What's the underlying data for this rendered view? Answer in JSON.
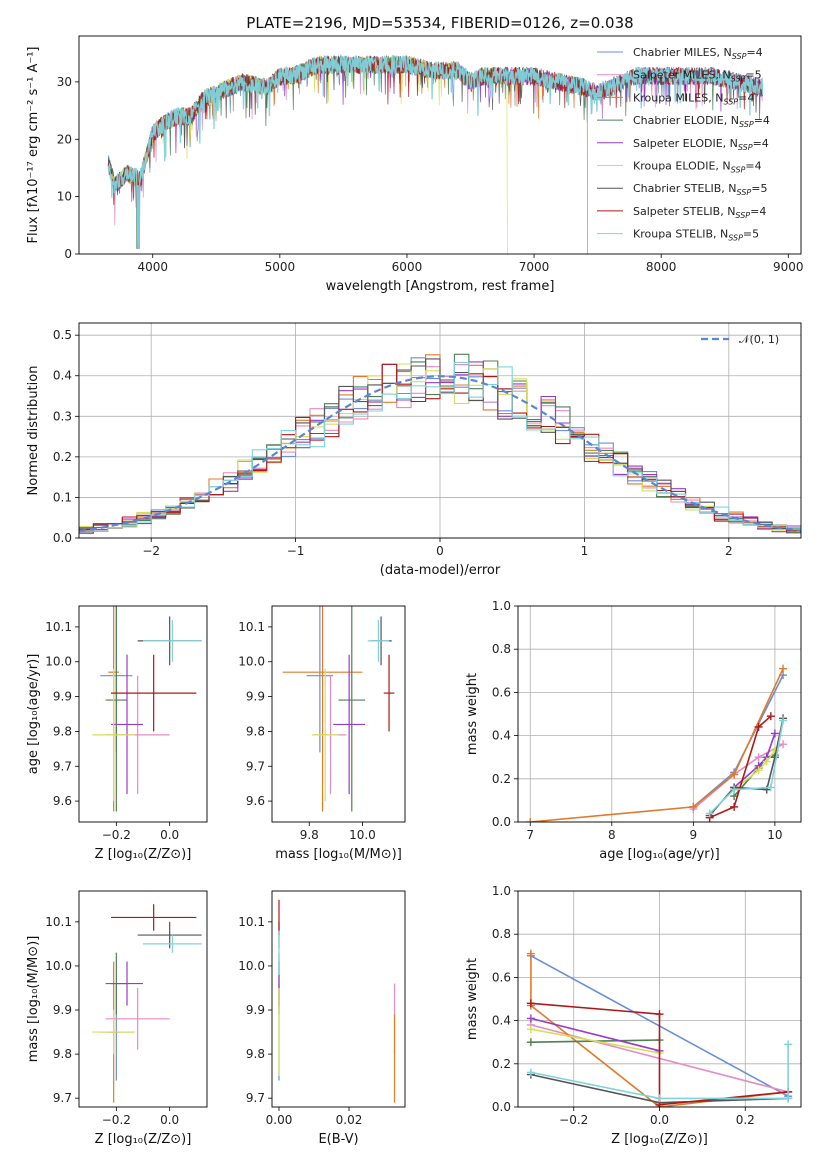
{
  "colors": {
    "Chabrier MILES": "#6a8fd8",
    "Salpeter MILES": "#e58cc4",
    "Kroupa MILES": "#e07b2a",
    "Chabrier ELODIE": "#4f7f55",
    "Salpeter ELODIE": "#9a3bc8",
    "Kroupa ELODIE": "#d5e05a",
    "Chabrier STELIB": "#555555",
    "Salpeter STELIB": "#b01818",
    "Kroupa STELIB": "#7fd4dc"
  },
  "chart_data": [
    {
      "id": "spectrum",
      "type": "line",
      "title": "PLATE=2196, MJD=53534, FIBERID=0126, z=0.038",
      "xlabel": "wavelength [Angstrom, rest frame]",
      "ylabel": "Flux [fλ10⁻¹⁷ erg cm⁻² s⁻¹ A⁻¹]",
      "xlim": [
        3420,
        9100
      ],
      "ylim": [
        0,
        38
      ],
      "xticks": [
        4000,
        5000,
        6000,
        7000,
        8000,
        9000
      ],
      "yticks": [
        0,
        10,
        20,
        30
      ],
      "legend_position": "top-right",
      "series": [
        {
          "name": "Chabrier MILES, N_SSP=4",
          "legend": "Chabrier MILES, N",
          "sub": "SSP",
          "suffix": "=4",
          "color": "Chabrier MILES"
        },
        {
          "name": "Salpeter MILES, N_SSP=5",
          "legend": "Salpeter MILES, N",
          "sub": "SSP",
          "suffix": "=5",
          "color": "Salpeter MILES"
        },
        {
          "name": "Kroupa MILES, N_SSP=4",
          "legend": "Kroupa MILES, N",
          "sub": "SSP",
          "suffix": "=4",
          "color": "Kroupa MILES"
        },
        {
          "name": "Chabrier ELODIE, N_SSP=4",
          "legend": "Chabrier ELODIE, N",
          "sub": "SSP",
          "suffix": "=4",
          "color": "Chabrier ELODIE"
        },
        {
          "name": "Salpeter ELODIE, N_SSP=4",
          "legend": "Salpeter ELODIE, N",
          "sub": "SSP",
          "suffix": "=4",
          "color": "Salpeter ELODIE"
        },
        {
          "name": "Kroupa ELODIE, N_SSP=4",
          "legend": "Kroupa ELODIE, N",
          "sub": "SSP",
          "suffix": "=4",
          "color": "Kroupa ELODIE"
        },
        {
          "name": "Chabrier STELIB, N_SSP=5",
          "legend": "Chabrier STELIB, N",
          "sub": "SSP",
          "suffix": "=5",
          "color": "Chabrier STELIB"
        },
        {
          "name": "Salpeter STELIB, N_SSP=4",
          "legend": "Salpeter STELIB, N",
          "sub": "SSP",
          "suffix": "=4",
          "color": "Salpeter STELIB"
        },
        {
          "name": "Kroupa STELIB, N_SSP=5",
          "legend": "Kroupa STELIB, N",
          "sub": "SSP",
          "suffix": "=5",
          "color": "Kroupa STELIB"
        }
      ],
      "envelope": {
        "x": [
          3650,
          3700,
          3800,
          3900,
          4000,
          4100,
          4200,
          4300,
          4400,
          4500,
          4700,
          4900,
          5000,
          5100,
          5200,
          5300,
          5400,
          5500,
          5600,
          5800,
          6000,
          6200,
          6400,
          6500,
          6600,
          6800,
          7000,
          7200,
          7400,
          7500,
          7600,
          7700,
          7800,
          7900,
          8000,
          8200,
          8400,
          8600,
          8800
        ],
        "y": [
          16,
          12,
          14,
          13,
          21,
          23,
          24,
          24,
          27,
          28,
          30,
          29,
          31,
          31,
          32,
          33,
          33,
          33,
          33,
          33,
          33,
          32,
          32,
          30,
          31,
          31,
          31,
          30,
          29,
          28,
          29,
          30,
          31,
          31,
          31,
          31,
          31,
          30,
          29
        ]
      },
      "cutoffs": [
        {
          "series": "Kroupa ELODIE",
          "x": 6790
        },
        {
          "series": "Kroupa MILES",
          "x": 7420
        }
      ]
    },
    {
      "id": "residuals",
      "type": "line",
      "xlabel": "(data-model)/error",
      "ylabel": "Normed distribution",
      "xlim": [
        -2.5,
        2.5
      ],
      "ylim": [
        0,
        0.53
      ],
      "xticks": [
        -2,
        -1,
        0,
        1,
        2
      ],
      "yticks": [
        0.0,
        0.1,
        0.2,
        0.3,
        0.4,
        0.5
      ],
      "grid": true,
      "legend_position": "top-right",
      "legend": "𝒩(0, 1)",
      "bin_width": 0.1
    },
    {
      "id": "age-Z",
      "type": "scatter",
      "xlabel": "Z [log₁₀(Z/Z⊙)]",
      "ylabel": "age  [log₁₀(age/yr)]",
      "xlim": [
        -0.34,
        0.14
      ],
      "ylim": [
        9.54,
        10.16
      ],
      "xticks": [
        -0.2,
        0.0
      ],
      "yticks": [
        9.6,
        9.7,
        9.8,
        9.9,
        10.0,
        10.1
      ],
      "points": [
        {
          "color": "Chabrier MILES",
          "x": -0.2,
          "y": 9.96,
          "xerr": 0.06,
          "yerr": 0.22
        },
        {
          "color": "Salpeter MILES",
          "x": -0.12,
          "y": 9.79,
          "xerr": 0.12,
          "yerr": 0.17
        },
        {
          "color": "Kroupa MILES",
          "x": -0.21,
          "y": 9.97,
          "xerr": 0.02,
          "yerr": 0.4
        },
        {
          "color": "Chabrier ELODIE",
          "x": -0.2,
          "y": 9.89,
          "xerr": 0.04,
          "yerr": 0.32
        },
        {
          "color": "Salpeter ELODIE",
          "x": -0.16,
          "y": 9.82,
          "xerr": 0.06,
          "yerr": 0.2
        },
        {
          "color": "Kroupa ELODIE",
          "x": -0.21,
          "y": 9.79,
          "xerr": 0.08,
          "yerr": 0.19
        },
        {
          "color": "Chabrier STELIB",
          "x": 0.0,
          "y": 10.06,
          "xerr": 0.12,
          "yerr": 0.07
        },
        {
          "color": "Salpeter STELIB",
          "x": -0.06,
          "y": 9.91,
          "xerr": 0.16,
          "yerr": 0.11
        },
        {
          "color": "Kroupa STELIB",
          "x": 0.01,
          "y": 10.06,
          "xerr": 0.11,
          "yerr": 0.06
        }
      ]
    },
    {
      "id": "age-mass",
      "type": "scatter",
      "xlabel": "mass [log₁₀(M/M⊙)]",
      "ylabel": "",
      "xlim": [
        9.66,
        10.16
      ],
      "ylim": [
        9.54,
        10.16
      ],
      "xticks": [
        9.8,
        10.0
      ],
      "yticks": [
        9.6,
        9.7,
        9.8,
        9.9,
        10.0,
        10.1
      ],
      "points": [
        {
          "color": "Chabrier MILES",
          "x": 9.84,
          "y": 9.96,
          "xerr": 0.05,
          "yerr": 0.22
        },
        {
          "color": "Salpeter MILES",
          "x": 9.88,
          "y": 9.79,
          "xerr": 0.06,
          "yerr": 0.17
        },
        {
          "color": "Kroupa MILES",
          "x": 9.85,
          "y": 9.97,
          "xerr": 0.15,
          "yerr": 0.4
        },
        {
          "color": "Chabrier ELODIE",
          "x": 9.96,
          "y": 9.89,
          "xerr": 0.05,
          "yerr": 0.32
        },
        {
          "color": "Salpeter ELODIE",
          "x": 9.95,
          "y": 9.82,
          "xerr": 0.06,
          "yerr": 0.2
        },
        {
          "color": "Kroupa ELODIE",
          "x": 9.86,
          "y": 9.79,
          "xerr": 0.05,
          "yerr": 0.19
        },
        {
          "color": "Chabrier STELIB",
          "x": 10.07,
          "y": 10.06,
          "xerr": 0.04,
          "yerr": 0.07
        },
        {
          "color": "Salpeter STELIB",
          "x": 10.1,
          "y": 9.91,
          "xerr": 0.02,
          "yerr": 0.11
        },
        {
          "color": "Kroupa STELIB",
          "x": 10.06,
          "y": 10.06,
          "xerr": 0.04,
          "yerr": 0.06
        }
      ]
    },
    {
      "id": "weights-age",
      "type": "line",
      "xlabel": "age  [log₁₀(age/yr)]",
      "ylabel": "mass weight",
      "xlim": [
        6.85,
        10.32
      ],
      "ylim": [
        0,
        1.0
      ],
      "xticks": [
        7,
        8,
        9,
        10
      ],
      "yticks": [
        0.0,
        0.2,
        0.4,
        0.6,
        0.8,
        1.0
      ],
      "grid": true,
      "series": [
        {
          "color": "Chabrier MILES",
          "x": [
            9.0,
            9.5,
            10.1
          ],
          "y": [
            0.07,
            0.23,
            0.68
          ]
        },
        {
          "color": "Salpeter MILES",
          "x": [
            9.0,
            9.5,
            9.8,
            10.1
          ],
          "y": [
            0.06,
            0.22,
            0.3,
            0.36
          ]
        },
        {
          "color": "Kroupa MILES",
          "x": [
            7.0,
            9.0,
            9.5,
            10.1
          ],
          "y": [
            0.0,
            0.07,
            0.22,
            0.71
          ]
        },
        {
          "color": "Chabrier ELODIE",
          "x": [
            9.5,
            9.8,
            9.9,
            10.0
          ],
          "y": [
            0.12,
            0.25,
            0.3,
            0.31
          ]
        },
        {
          "color": "Salpeter ELODIE",
          "x": [
            9.5,
            9.8,
            9.9,
            10.0
          ],
          "y": [
            0.16,
            0.26,
            0.3,
            0.41
          ]
        },
        {
          "color": "Kroupa ELODIE",
          "x": [
            9.5,
            9.8,
            9.9,
            10.0
          ],
          "y": [
            0.15,
            0.24,
            0.28,
            0.33
          ]
        },
        {
          "color": "Chabrier STELIB",
          "x": [
            9.2,
            9.5,
            9.9,
            10.0,
            10.1
          ],
          "y": [
            0.03,
            0.16,
            0.15,
            0.3,
            0.48
          ]
        },
        {
          "color": "Salpeter STELIB",
          "x": [
            9.2,
            9.5,
            9.8,
            9.95
          ],
          "y": [
            0.02,
            0.07,
            0.44,
            0.49
          ]
        },
        {
          "color": "Kroupa STELIB",
          "x": [
            9.2,
            9.5,
            9.95,
            10.1
          ],
          "y": [
            0.04,
            0.15,
            0.16,
            0.47
          ]
        }
      ]
    },
    {
      "id": "mass-Z",
      "type": "scatter",
      "xlabel": "Z [log₁₀(Z/Z⊙)]",
      "ylabel": "mass [log₁₀(M/M⊙)]",
      "xlim": [
        -0.34,
        0.14
      ],
      "ylim": [
        9.68,
        10.17
      ],
      "xticks": [
        -0.2,
        0.0
      ],
      "yticks": [
        9.7,
        9.8,
        9.9,
        10.0,
        10.1
      ],
      "points": [
        {
          "color": "Chabrier MILES",
          "x": -0.2,
          "y": 9.85,
          "xerr": 0.06,
          "yerr": 0.11
        },
        {
          "color": "Salpeter MILES",
          "x": -0.12,
          "y": 9.88,
          "xerr": 0.12,
          "yerr": 0.07
        },
        {
          "color": "Kroupa MILES",
          "x": -0.21,
          "y": 9.85,
          "xerr": 0.02,
          "yerr": 0.16
        },
        {
          "color": "Chabrier ELODIE",
          "x": -0.2,
          "y": 9.96,
          "xerr": 0.04,
          "yerr": 0.07
        },
        {
          "color": "Salpeter ELODIE",
          "x": -0.16,
          "y": 9.96,
          "xerr": 0.06,
          "yerr": 0.05
        },
        {
          "color": "Kroupa ELODIE",
          "x": -0.21,
          "y": 9.85,
          "xerr": 0.08,
          "yerr": 0.05
        },
        {
          "color": "Chabrier STELIB",
          "x": 0.0,
          "y": 10.07,
          "xerr": 0.12,
          "yerr": 0.03
        },
        {
          "color": "Salpeter STELIB",
          "x": -0.06,
          "y": 10.11,
          "xerr": 0.16,
          "yerr": 0.03
        },
        {
          "color": "Kroupa STELIB",
          "x": 0.01,
          "y": 10.05,
          "xerr": 0.11,
          "yerr": 0.02
        }
      ]
    },
    {
      "id": "mass-ebv",
      "type": "scatter",
      "xlabel": "E(B-V)",
      "ylabel": "",
      "xlim": [
        -0.002,
        0.036
      ],
      "ylim": [
        9.68,
        10.17
      ],
      "xticks": [
        0.0,
        0.02
      ],
      "yticks": [
        9.7,
        9.8,
        9.9,
        10.0,
        10.1
      ],
      "points": [
        {
          "color": "Chabrier MILES",
          "x": 0.0,
          "y": 9.85,
          "xerr": 0,
          "yerr": 0.11
        },
        {
          "color": "Salpeter MILES",
          "x": 0.033,
          "y": 9.88,
          "xerr": 0,
          "yerr": 0.08
        },
        {
          "color": "Kroupa MILES",
          "x": 0.033,
          "y": 9.79,
          "xerr": 0,
          "yerr": 0.1
        },
        {
          "color": "Chabrier ELODIE",
          "x": 0.0,
          "y": 9.96,
          "xerr": 0,
          "yerr": 0.07
        },
        {
          "color": "Salpeter ELODIE",
          "x": 0.0,
          "y": 9.96,
          "xerr": 0,
          "yerr": 0.05
        },
        {
          "color": "Kroupa ELODIE",
          "x": 0.0,
          "y": 9.85,
          "xerr": 0,
          "yerr": 0.1
        },
        {
          "color": "Chabrier STELIB",
          "x": 0.0,
          "y": 10.07,
          "xerr": 0,
          "yerr": 0.03
        },
        {
          "color": "Salpeter STELIB",
          "x": 0.0,
          "y": 10.11,
          "xerr": 0,
          "yerr": 0.04
        },
        {
          "color": "Kroupa STELIB",
          "x": 0.0,
          "y": 10.03,
          "xerr": 0,
          "yerr": 0.05
        }
      ]
    },
    {
      "id": "weights-Z",
      "type": "line",
      "xlabel": "Z [log₁₀(Z/Z⊙)]",
      "ylabel": "mass weight",
      "xlim": [
        -0.33,
        0.33
      ],
      "ylim": [
        0,
        1.0
      ],
      "xticks": [
        -0.2,
        0.0,
        0.2
      ],
      "yticks": [
        0.0,
        0.2,
        0.4,
        0.6,
        0.8,
        1.0
      ],
      "grid": true,
      "series": [
        {
          "color": "Chabrier MILES",
          "x": [
            -0.3,
            0.3
          ],
          "y": [
            0.7,
            0.05
          ]
        },
        {
          "color": "Salpeter MILES",
          "x": [
            -0.3,
            0.3
          ],
          "y": [
            0.38,
            0.07
          ]
        },
        {
          "color": "Kroupa MILES",
          "x": [
            -0.3,
            -0.3,
            0.0,
            0.3
          ],
          "y": [
            0.71,
            0.47,
            0.0,
            0.07
          ]
        },
        {
          "color": "Chabrier ELODIE",
          "x": [
            -0.3,
            0.0
          ],
          "y": [
            0.3,
            0.31
          ]
        },
        {
          "color": "Salpeter ELODIE",
          "x": [
            -0.3,
            0.0
          ],
          "y": [
            0.41,
            0.26
          ]
        },
        {
          "color": "Kroupa ELODIE",
          "x": [
            -0.3,
            0.0
          ],
          "y": [
            0.36,
            0.25
          ]
        },
        {
          "color": "Chabrier STELIB",
          "x": [
            -0.3,
            0.0,
            0.3
          ],
          "y": [
            0.15,
            0.02,
            0.04
          ]
        },
        {
          "color": "Salpeter STELIB",
          "x": [
            -0.3,
            0.0,
            0.0,
            0.3
          ],
          "y": [
            0.48,
            0.43,
            0.01,
            0.07
          ]
        },
        {
          "color": "Kroupa STELIB",
          "x": [
            -0.3,
            0.0,
            0.3,
            0.3
          ],
          "y": [
            0.16,
            0.04,
            0.04,
            0.29
          ]
        }
      ]
    }
  ]
}
